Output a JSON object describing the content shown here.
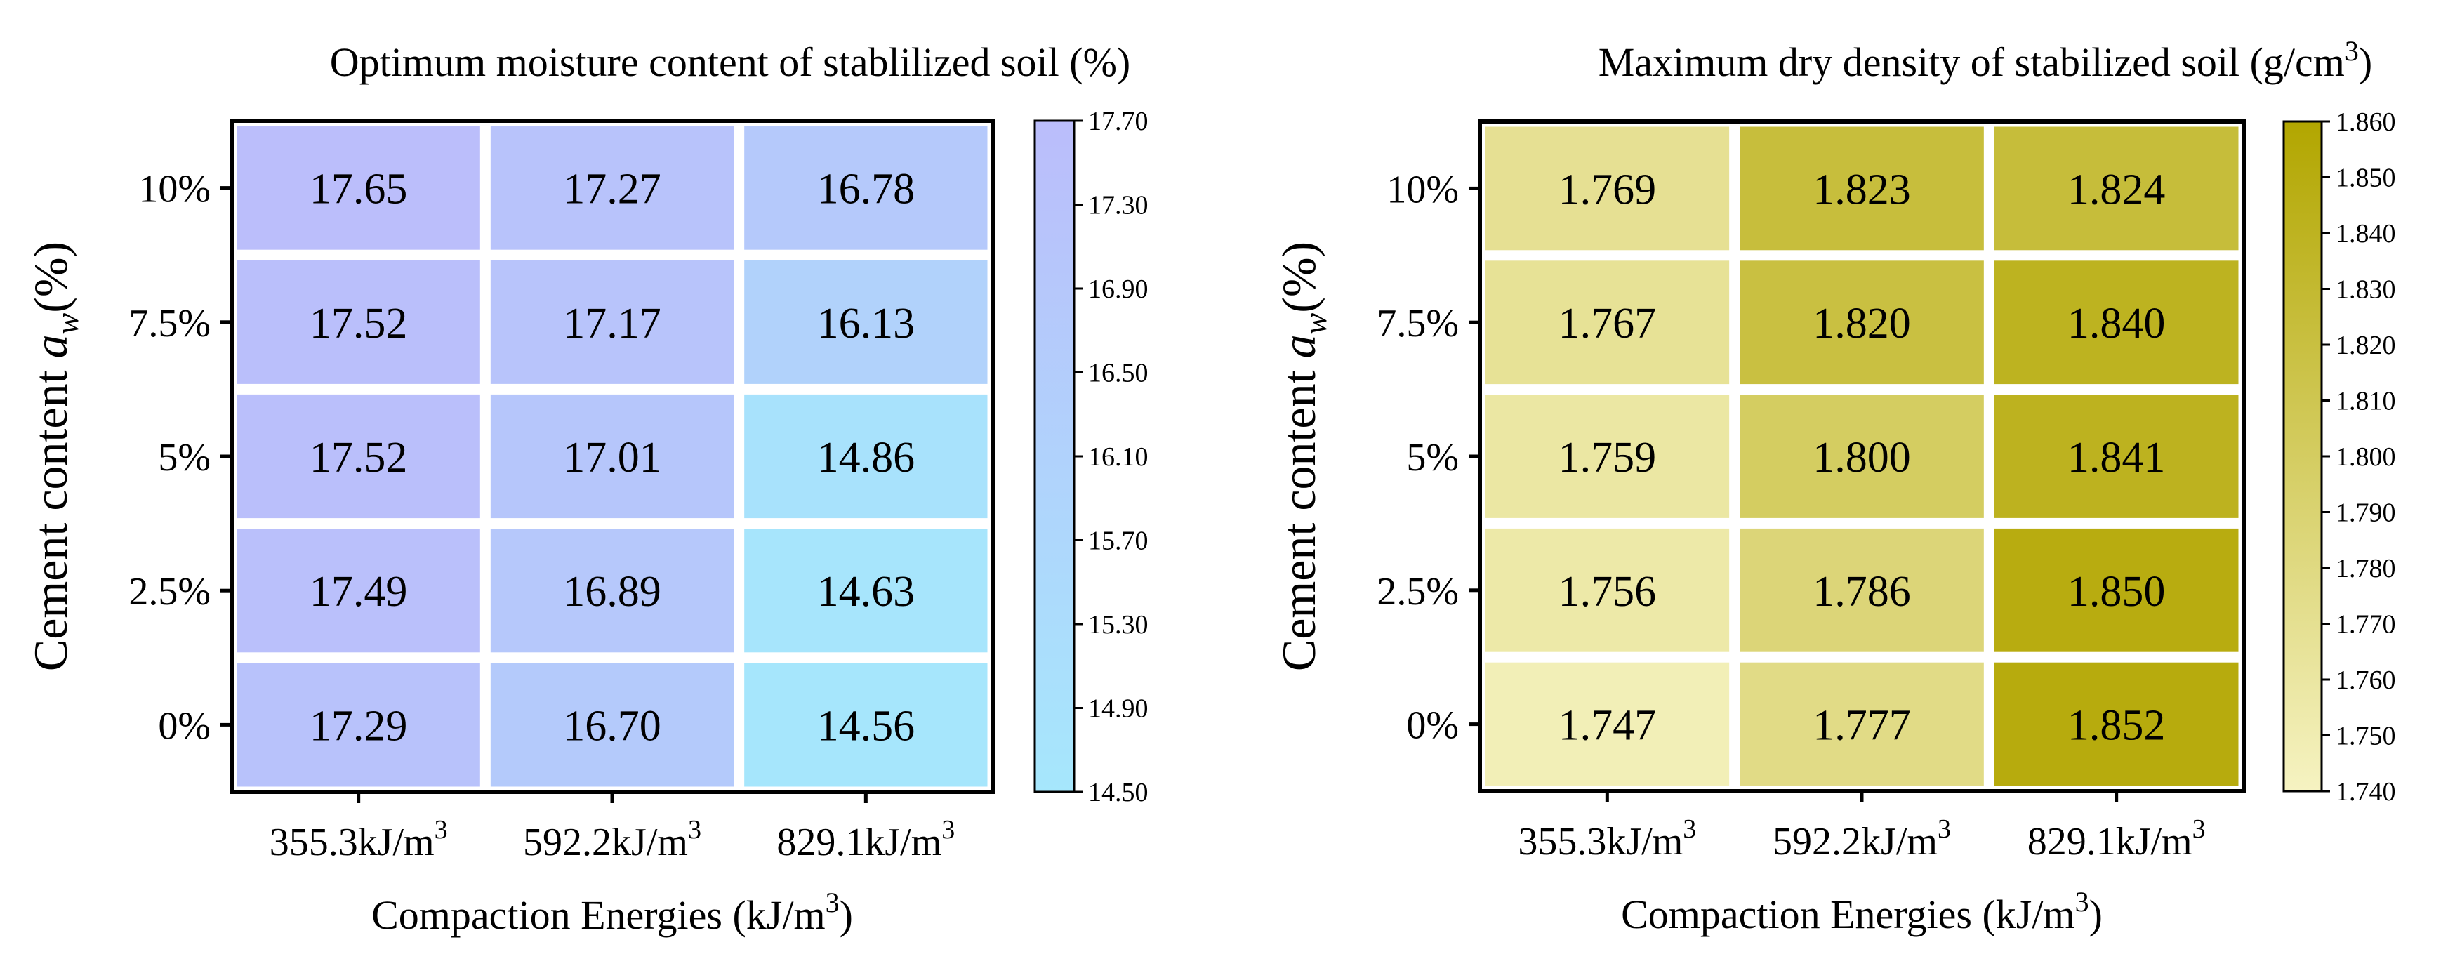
{
  "figure": {
    "categories": [
      "355.3kJ/m",
      "592.2kJ/m",
      "829.1kJ/m"
    ],
    "categories_sup": "3",
    "rows": [
      "10%",
      "7.5%",
      "5%",
      "2.5%",
      "0%"
    ],
    "xlabel": "Compaction Energies (kJ/m",
    "xlabel_sup": "3",
    "xlabel_end": ")",
    "ylabel_pre": "Cement content ",
    "ylabel_var": "a",
    "ylabel_sub": "w",
    "ylabel_post": "(%)"
  },
  "chart_data": [
    {
      "type": "heatmap",
      "title": "Optimum moisture content of stablilized soil (%)",
      "title_sup": "",
      "title_end": "",
      "xlabel": "Compaction Energies (kJ/m3)",
      "ylabel": "Cement content aw(%)",
      "x": [
        "355.3kJ/m3",
        "592.2kJ/m3",
        "829.1kJ/m3"
      ],
      "y": [
        "10%",
        "7.5%",
        "5%",
        "2.5%",
        "0%"
      ],
      "values": [
        [
          "17.65",
          "17.27",
          "16.78"
        ],
        [
          "17.52",
          "17.17",
          "16.13"
        ],
        [
          "17.52",
          "17.01",
          "14.86"
        ],
        [
          "17.49",
          "16.89",
          "14.63"
        ],
        [
          "17.29",
          "16.70",
          "14.56"
        ]
      ],
      "colorbar": {
        "min": 14.5,
        "max": 17.7,
        "ticks": [
          "17.70",
          "17.30",
          "16.90",
          "16.50",
          "16.10",
          "15.70",
          "15.30",
          "14.90",
          "14.50"
        ],
        "color_low": "#a6e7fc",
        "color_high": "#bbbdfb"
      }
    },
    {
      "type": "heatmap",
      "title": "Maximum dry density of stabilized soil (g/cm",
      "title_sup": "3",
      "title_end": ")",
      "xlabel": "Compaction Energies (kJ/m3)",
      "ylabel": "Cement content aw(%)",
      "x": [
        "355.3kJ/m3",
        "592.2kJ/m3",
        "829.1kJ/m3"
      ],
      "y": [
        "10%",
        "7.5%",
        "5%",
        "2.5%",
        "0%"
      ],
      "values": [
        [
          "1.769",
          "1.823",
          "1.824"
        ],
        [
          "1.767",
          "1.820",
          "1.840"
        ],
        [
          "1.759",
          "1.800",
          "1.841"
        ],
        [
          "1.756",
          "1.786",
          "1.850"
        ],
        [
          "1.747",
          "1.777",
          "1.852"
        ]
      ],
      "colorbar": {
        "min": 1.74,
        "max": 1.86,
        "ticks": [
          "1.860",
          "1.850",
          "1.840",
          "1.830",
          "1.820",
          "1.810",
          "1.800",
          "1.790",
          "1.780",
          "1.770",
          "1.760",
          "1.750",
          "1.740"
        ],
        "color_low": "#f6f3c2",
        "color_high": "#b2a600"
      }
    }
  ]
}
